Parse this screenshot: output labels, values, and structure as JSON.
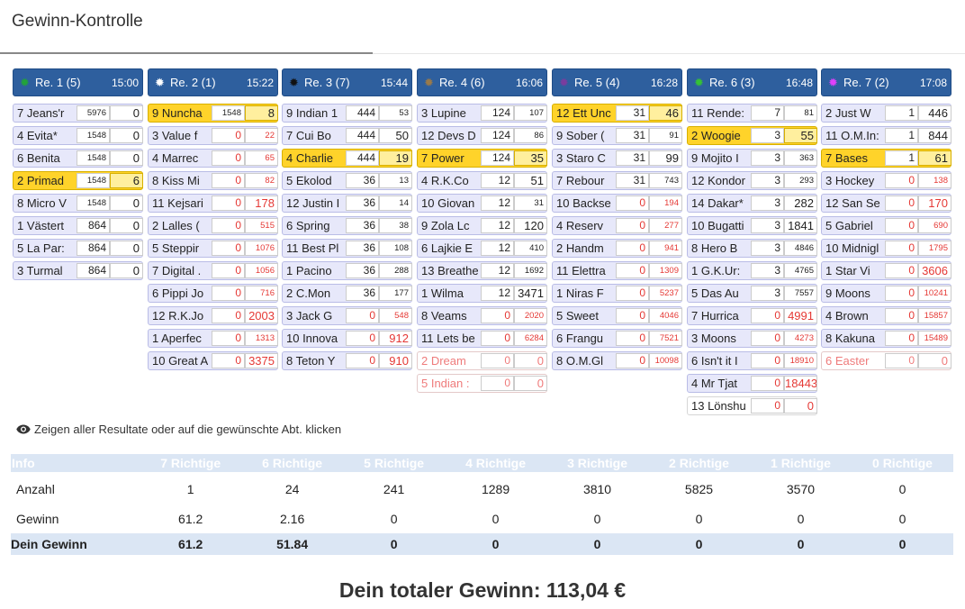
{
  "title": "Gewinn-Kontrolle",
  "races": [
    {
      "label": "Re. 1 (5)",
      "time": "15:00",
      "dot": "#22a33a",
      "horses": [
        {
          "name": "7 Jeans'r",
          "b1": "5976",
          "b2": "0",
          "b1s": true
        },
        {
          "name": "4 Evita*",
          "b1": "1548",
          "b2": "0",
          "b1s": true
        },
        {
          "name": "6 Benita",
          "b1": "1548",
          "b2": "0",
          "b1s": true
        },
        {
          "name": "2 Primad",
          "b1": "1548",
          "b2": "6",
          "b1s": true,
          "sel": true
        },
        {
          "name": "8 Micro V",
          "b1": "1548",
          "b2": "0",
          "b1s": true
        },
        {
          "name": "1 Västert",
          "b1": "864",
          "b2": "0"
        },
        {
          "name": "5 La Par:",
          "b1": "864",
          "b2": "0"
        },
        {
          "name": "3 Turmal",
          "b1": "864",
          "b2": "0"
        }
      ]
    },
    {
      "label": "Re. 2 (1)",
      "time": "15:22",
      "dot": "#ffffff",
      "horses": [
        {
          "name": "9 Nuncha",
          "b1": "1548",
          "b2": "8",
          "b1s": true,
          "sel": true
        },
        {
          "name": "3 Value f",
          "b1": "0",
          "b2": "22",
          "red": true,
          "b2s": true
        },
        {
          "name": "4 Marrec",
          "b1": "0",
          "b2": "65",
          "red": true,
          "b2s": true
        },
        {
          "name": "8 Kiss Mi",
          "b1": "0",
          "b2": "82",
          "red": true,
          "b2s": true
        },
        {
          "name": "11 Kejsari",
          "b1": "0",
          "b2": "178",
          "red": true
        },
        {
          "name": "2 Lalles (",
          "b1": "0",
          "b2": "515",
          "red": true,
          "b2s": true
        },
        {
          "name": "5 Steppir",
          "b1": "0",
          "b2": "1076",
          "red": true,
          "b2s": true
        },
        {
          "name": "7 Digital .",
          "b1": "0",
          "b2": "1056",
          "red": true,
          "b2s": true
        },
        {
          "name": "6 Pippi Jo",
          "b1": "0",
          "b2": "716",
          "red": true,
          "b2s": true
        },
        {
          "name": "12 R.K.Jo",
          "b1": "0",
          "b2": "2003",
          "red": true
        },
        {
          "name": "1 Aperfec",
          "b1": "0",
          "b2": "1313",
          "red": true,
          "b2s": true
        },
        {
          "name": "10 Great A",
          "b1": "0",
          "b2": "3375",
          "red": true
        }
      ]
    },
    {
      "label": "Re. 3 (7)",
      "time": "15:44",
      "dot": "#111111",
      "horses": [
        {
          "name": "9 Indian 1",
          "b1": "444",
          "b2": "53",
          "b2s": true
        },
        {
          "name": "7 Cui Bo",
          "b1": "444",
          "b2": "50"
        },
        {
          "name": "4 Charlie",
          "b1": "444",
          "b2": "19",
          "sel": true
        },
        {
          "name": "5 Ekolod",
          "b1": "36",
          "b2": "13",
          "b2s": true
        },
        {
          "name": "12 Justin I",
          "b1": "36",
          "b2": "14",
          "b2s": true
        },
        {
          "name": "6 Spring",
          "b1": "36",
          "b2": "38",
          "b2s": true
        },
        {
          "name": "11 Best Pl",
          "b1": "36",
          "b2": "108",
          "b2s": true
        },
        {
          "name": "1 Pacino",
          "b1": "36",
          "b2": "288",
          "b2s": true
        },
        {
          "name": "2 C.Mon",
          "b1": "36",
          "b2": "177",
          "b2s": true
        },
        {
          "name": "3 Jack G",
          "b1": "0",
          "b2": "548",
          "red": true,
          "b2s": true
        },
        {
          "name": "10 Innova",
          "b1": "0",
          "b2": "912",
          "red": true
        },
        {
          "name": "8 Teton Y",
          "b1": "0",
          "b2": "910",
          "red": true
        }
      ]
    },
    {
      "label": "Re. 4 (6)",
      "time": "16:06",
      "dot": "#9a7a4a",
      "horses": [
        {
          "name": "3 Lupine",
          "b1": "124",
          "b2": "107",
          "b2s": true
        },
        {
          "name": "12 Devs D",
          "b1": "124",
          "b2": "86",
          "b2s": true
        },
        {
          "name": "7 Power",
          "b1": "124",
          "b2": "35",
          "sel": true
        },
        {
          "name": "4 R.K.Co",
          "b1": "12",
          "b2": "51"
        },
        {
          "name": "10 Giovan",
          "b1": "12",
          "b2": "31",
          "b2s": true
        },
        {
          "name": "9 Zola Lc",
          "b1": "12",
          "b2": "120"
        },
        {
          "name": "6 Lajkie E",
          "b1": "12",
          "b2": "410",
          "b2s": true
        },
        {
          "name": "13 Breathe",
          "b1": "12",
          "b2": "1692",
          "b2s": true
        },
        {
          "name": "1 Wilma",
          "b1": "12",
          "b2": "3471"
        },
        {
          "name": "8 Veams",
          "b1": "0",
          "b2": "2020",
          "red": true,
          "b2s": true
        },
        {
          "name": "11 Lets be",
          "b1": "0",
          "b2": "6284",
          "red": true,
          "b2s": true
        },
        {
          "name": "2 Dream",
          "b1": "0",
          "b2": "0",
          "scr": true
        },
        {
          "name": "5 Indian :",
          "b1": "0",
          "b2": "0",
          "scr": true
        }
      ]
    },
    {
      "label": "Re. 5 (4)",
      "time": "16:28",
      "dot": "#7a3c9e",
      "horses": [
        {
          "name": "12 Ett Unc",
          "b1": "31",
          "b2": "46",
          "sel": true
        },
        {
          "name": "9 Sober (",
          "b1": "31",
          "b2": "91",
          "b2s": true
        },
        {
          "name": "3 Staro C",
          "b1": "31",
          "b2": "99"
        },
        {
          "name": "7 Rebour",
          "b1": "31",
          "b2": "743",
          "b2s": true
        },
        {
          "name": "10 Backse",
          "b1": "0",
          "b2": "194",
          "red": true,
          "b2s": true
        },
        {
          "name": "4 Reserv",
          "b1": "0",
          "b2": "277",
          "red": true,
          "b2s": true
        },
        {
          "name": "2 Handm",
          "b1": "0",
          "b2": "941",
          "red": true,
          "b2s": true
        },
        {
          "name": "11 Elettra",
          "b1": "0",
          "b2": "1309",
          "red": true,
          "b2s": true
        },
        {
          "name": "1 Niras F",
          "b1": "0",
          "b2": "5237",
          "red": true,
          "b2s": true
        },
        {
          "name": "5 Sweet",
          "b1": "0",
          "b2": "4046",
          "red": true,
          "b2s": true
        },
        {
          "name": "6 Frangu",
          "b1": "0",
          "b2": "7521",
          "red": true,
          "b2s": true
        },
        {
          "name": "8 O.M.Gl",
          "b1": "0",
          "b2": "10098",
          "red": true,
          "b2s": true
        }
      ]
    },
    {
      "label": "Re. 6 (3)",
      "time": "16:48",
      "dot": "#35c235",
      "horses": [
        {
          "name": "11 Rende:",
          "b1": "7",
          "b2": "81",
          "b2s": true
        },
        {
          "name": "2 Woogie",
          "b1": "3",
          "b2": "55",
          "sel": true
        },
        {
          "name": "9 Mojito I",
          "b1": "3",
          "b2": "363",
          "b2s": true
        },
        {
          "name": "12 Kondor",
          "b1": "3",
          "b2": "293",
          "b2s": true
        },
        {
          "name": "14 Dakar*",
          "b1": "3",
          "b2": "282"
        },
        {
          "name": "10 Bugatti",
          "b1": "3",
          "b2": "1841"
        },
        {
          "name": "8 Hero B",
          "b1": "3",
          "b2": "4846",
          "b2s": true
        },
        {
          "name": "1 G.K.Ur:",
          "b1": "3",
          "b2": "4765",
          "b2s": true
        },
        {
          "name": "5 Das Au",
          "b1": "3",
          "b2": "7557",
          "b2s": true
        },
        {
          "name": "7 Hurrica",
          "b1": "0",
          "b2": "4991",
          "red": true
        },
        {
          "name": "3 Moons",
          "b1": "0",
          "b2": "4273",
          "red": true,
          "b2s": true
        },
        {
          "name": "6 Isn't it I",
          "b1": "0",
          "b2": "18910",
          "red": true,
          "b2s": true
        },
        {
          "name": "4 Mr Tjat",
          "b1": "0",
          "b2": "18443",
          "red": true
        },
        {
          "name": "13 Lönshu",
          "b1": "0",
          "b2": "0",
          "red": true,
          "plain": true
        }
      ]
    },
    {
      "label": "Re. 7 (2)",
      "time": "17:08",
      "dot": "#e040fb",
      "horses": [
        {
          "name": "2 Just W",
          "b1": "1",
          "b2": "446"
        },
        {
          "name": "11 O.M.In:",
          "b1": "1",
          "b2": "844"
        },
        {
          "name": "7 Bases",
          "b1": "1",
          "b2": "61",
          "sel": true
        },
        {
          "name": "3 Hockey",
          "b1": "0",
          "b2": "138",
          "red": true,
          "b2s": true
        },
        {
          "name": "12 San Se",
          "b1": "0",
          "b2": "170",
          "red": true
        },
        {
          "name": "5 Gabriel",
          "b1": "0",
          "b2": "690",
          "red": true,
          "b2s": true
        },
        {
          "name": "10 Midnigl",
          "b1": "0",
          "b2": "1795",
          "red": true,
          "b2s": true
        },
        {
          "name": "1 Star Vi",
          "b1": "0",
          "b2": "3606",
          "red": true
        },
        {
          "name": "9 Moons",
          "b1": "0",
          "b2": "10241",
          "red": true,
          "b2s": true
        },
        {
          "name": "4 Brown",
          "b1": "0",
          "b2": "15857",
          "red": true,
          "b2s": true
        },
        {
          "name": "8 Kakuna",
          "b1": "0",
          "b2": "15489",
          "red": true,
          "b2s": true
        },
        {
          "name": "6 Easter",
          "b1": "0",
          "b2": "0",
          "scr": true
        }
      ]
    }
  ],
  "hint": "Zeigen aller Resultate oder auf die gewünschte Abt. klicken",
  "summary": {
    "headers": [
      "Info",
      "7 Richtige",
      "6 Richtige",
      "5 Richtige",
      "4 Richtige",
      "3 Richtige",
      "2 Richtige",
      "1 Richtige",
      "0 Richtige"
    ],
    "rows": [
      {
        "label": "Anzahl",
        "values": [
          "1",
          "24",
          "241",
          "1289",
          "3810",
          "5825",
          "3570",
          "0"
        ]
      },
      {
        "label": "Gewinn",
        "values": [
          "61.2",
          "2.16",
          "0",
          "0",
          "0",
          "0",
          "0",
          "0"
        ]
      },
      {
        "label": "Dein Gewinn",
        "values": [
          "61.2",
          "51.84",
          "0",
          "0",
          "0",
          "0",
          "0",
          "0"
        ]
      }
    ]
  },
  "total": "Dein totaler Gewinn: 113,04 €"
}
